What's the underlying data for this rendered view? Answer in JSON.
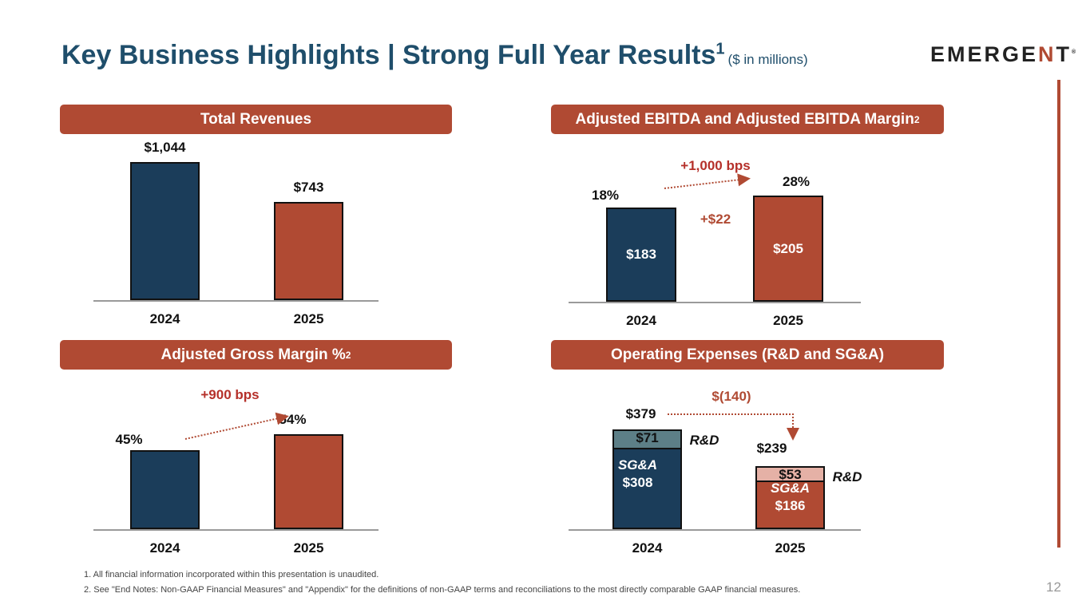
{
  "header": {
    "title": "Key Business Highlights | Strong Full Year Results",
    "title_sup": "1",
    "unit": "($ in millions)",
    "logo": "EMERGENT"
  },
  "colors": {
    "navy": "#1b3d5a",
    "rust": "#b04a33",
    "teal_rd": "#5d7f87",
    "pink_rd": "#e5b1a6",
    "title": "#1f4e6b"
  },
  "chart_data": [
    {
      "type": "bar",
      "title": "Total Revenues",
      "categories": [
        "2024",
        "2025"
      ],
      "values": [
        1044,
        743
      ],
      "labels": [
        "$1,044",
        "$743"
      ]
    },
    {
      "type": "bar",
      "title": "Adjusted EBITDA and Adjusted EBITDA Margin",
      "title_sup": "2",
      "categories": [
        "2024",
        "2025"
      ],
      "values": [
        183,
        205
      ],
      "labels": [
        "$183",
        "$205"
      ],
      "margins": [
        "18%",
        "28%"
      ],
      "margin_change": "+1,000 bps",
      "value_change": "+$22"
    },
    {
      "type": "bar",
      "title": "Adjusted Gross Margin %",
      "title_sup": "2",
      "categories": [
        "2024",
        "2025"
      ],
      "values": [
        45,
        54
      ],
      "labels": [
        "45%",
        "54%"
      ],
      "change": "+900 bps"
    },
    {
      "type": "bar",
      "stacked": true,
      "title": "Operating Expenses (R&D and SG&A)",
      "categories": [
        "2024",
        "2025"
      ],
      "series": [
        {
          "name": "SG&A",
          "values": [
            308,
            186
          ],
          "labels": [
            "$308",
            "$186"
          ]
        },
        {
          "name": "R&D",
          "values": [
            71,
            53
          ],
          "labels": [
            "$71",
            "$53"
          ]
        }
      ],
      "totals": [
        "$379",
        "$239"
      ],
      "change": "$(140)"
    }
  ],
  "footnotes": [
    "1.  All financial information incorporated within this presentation is unaudited.",
    "2.  See \"End Notes: Non-GAAP Financial Measures\" and \"Appendix\" for the definitions of non-GAAP terms and reconciliations to the most directly comparable GAAP financial measures."
  ],
  "page_number": "12"
}
